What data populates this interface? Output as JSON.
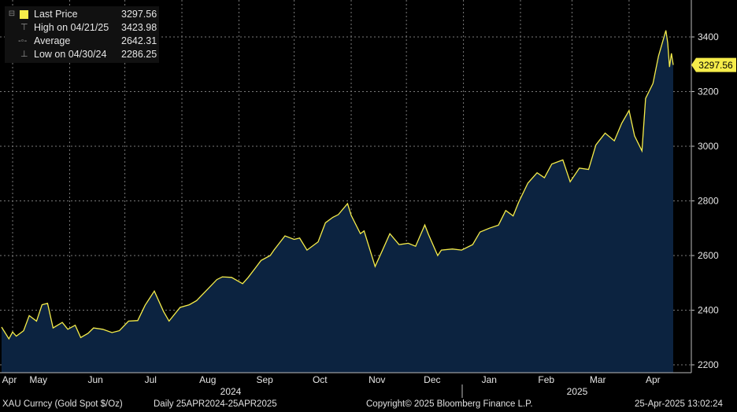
{
  "legend": {
    "items": [
      {
        "label": "Last Price",
        "value": "3297.56",
        "icon": "collapse-box-icon"
      },
      {
        "label": "High on 04/21/25",
        "value": "3423.98",
        "icon": "high-marker-icon"
      },
      {
        "label": "Average",
        "value": "2642.31",
        "icon": "average-line-icon"
      },
      {
        "label": "Low on 04/30/24",
        "value": "2286.25",
        "icon": "low-marker-icon"
      }
    ]
  },
  "footer": {
    "security": "XAU Curncy (Gold Spot  $/Oz)",
    "period": "Daily 25APR2024-25APR2025",
    "copyright": "Copyright© 2025 Bloomberg Finance L.P.",
    "timestamp": "25-Apr-2025 13:02:24"
  },
  "colors": {
    "line": "#f6ed4a",
    "area": "#0c2340",
    "background": "#000000",
    "last_price_tag": "#f6ed4a"
  },
  "chart_data": {
    "type": "area",
    "title": "",
    "xlabel": "",
    "ylabel": "",
    "ylim": [
      2180,
      3520
    ],
    "yticks": [
      2200,
      2400,
      2600,
      2800,
      3000,
      3200,
      3400
    ],
    "last_price_label": "3297.56",
    "x_month_labels": [
      "Apr",
      "May",
      "Jun",
      "Jul",
      "Aug",
      "Sep",
      "Oct",
      "Nov",
      "Dec",
      "Jan",
      "Feb",
      "Mar",
      "Apr"
    ],
    "x_year_labels": [
      "2024",
      "2025"
    ],
    "grid": true,
    "series": [
      {
        "x": [
          "2024-04-25",
          "2024-04-29",
          "2024-05-01",
          "2024-05-03",
          "2024-05-07",
          "2024-05-10",
          "2024-05-14",
          "2024-05-17",
          "2024-05-20",
          "2024-05-23",
          "2024-05-28",
          "2024-05-31",
          "2024-06-04",
          "2024-06-07",
          "2024-06-11",
          "2024-06-14",
          "2024-06-19",
          "2024-06-24",
          "2024-06-28",
          "2024-07-03",
          "2024-07-08",
          "2024-07-12",
          "2024-07-17",
          "2024-07-22",
          "2024-07-25",
          "2024-07-31",
          "2024-08-05",
          "2024-08-09",
          "2024-08-14",
          "2024-08-20",
          "2024-08-23",
          "2024-08-28",
          "2024-09-03",
          "2024-09-06",
          "2024-09-10",
          "2024-09-13",
          "2024-09-18",
          "2024-09-20",
          "2024-09-26",
          "2024-10-01",
          "2024-10-04",
          "2024-10-08",
          "2024-10-14",
          "2024-10-18",
          "2024-10-22",
          "2024-10-25",
          "2024-10-30",
          "2024-11-01",
          "2024-11-06",
          "2024-11-08",
          "2024-11-14",
          "2024-11-18",
          "2024-11-22",
          "2024-11-27",
          "2024-12-02",
          "2024-12-06",
          "2024-12-11",
          "2024-12-13",
          "2024-12-18",
          "2024-12-20",
          "2024-12-26",
          "2024-12-31",
          "2025-01-06",
          "2025-01-10",
          "2025-01-15",
          "2025-01-20",
          "2025-01-24",
          "2025-01-28",
          "2025-01-31",
          "2025-02-05",
          "2025-02-10",
          "2025-02-14",
          "2025-02-18",
          "2025-02-24",
          "2025-02-28",
          "2025-03-05",
          "2025-03-10",
          "2025-03-14",
          "2025-03-19",
          "2025-03-24",
          "2025-03-28",
          "2025-04-01",
          "2025-04-04",
          "2025-04-08",
          "2025-04-10",
          "2025-04-14",
          "2025-04-17",
          "2025-04-21",
          "2025-04-22",
          "2025-04-23",
          "2025-04-24",
          "2025-04-25"
        ],
        "values": [
          2338,
          2295,
          2320,
          2305,
          2325,
          2380,
          2360,
          2420,
          2425,
          2335,
          2355,
          2330,
          2345,
          2300,
          2315,
          2335,
          2330,
          2318,
          2325,
          2360,
          2362,
          2418,
          2470,
          2395,
          2360,
          2410,
          2420,
          2435,
          2470,
          2512,
          2522,
          2520,
          2497,
          2520,
          2555,
          2582,
          2600,
          2620,
          2672,
          2659,
          2664,
          2620,
          2650,
          2720,
          2740,
          2750,
          2790,
          2747,
          2680,
          2690,
          2560,
          2620,
          2680,
          2640,
          2645,
          2634,
          2712,
          2677,
          2600,
          2620,
          2624,
          2620,
          2640,
          2686,
          2700,
          2711,
          2765,
          2745,
          2795,
          2865,
          2903,
          2885,
          2935,
          2950,
          2870,
          2920,
          2915,
          3005,
          3048,
          3020,
          3084,
          3131,
          3038,
          2983,
          3175,
          3230,
          3330,
          3423.98,
          3378,
          3290,
          3340,
          3297.56
        ]
      }
    ]
  }
}
